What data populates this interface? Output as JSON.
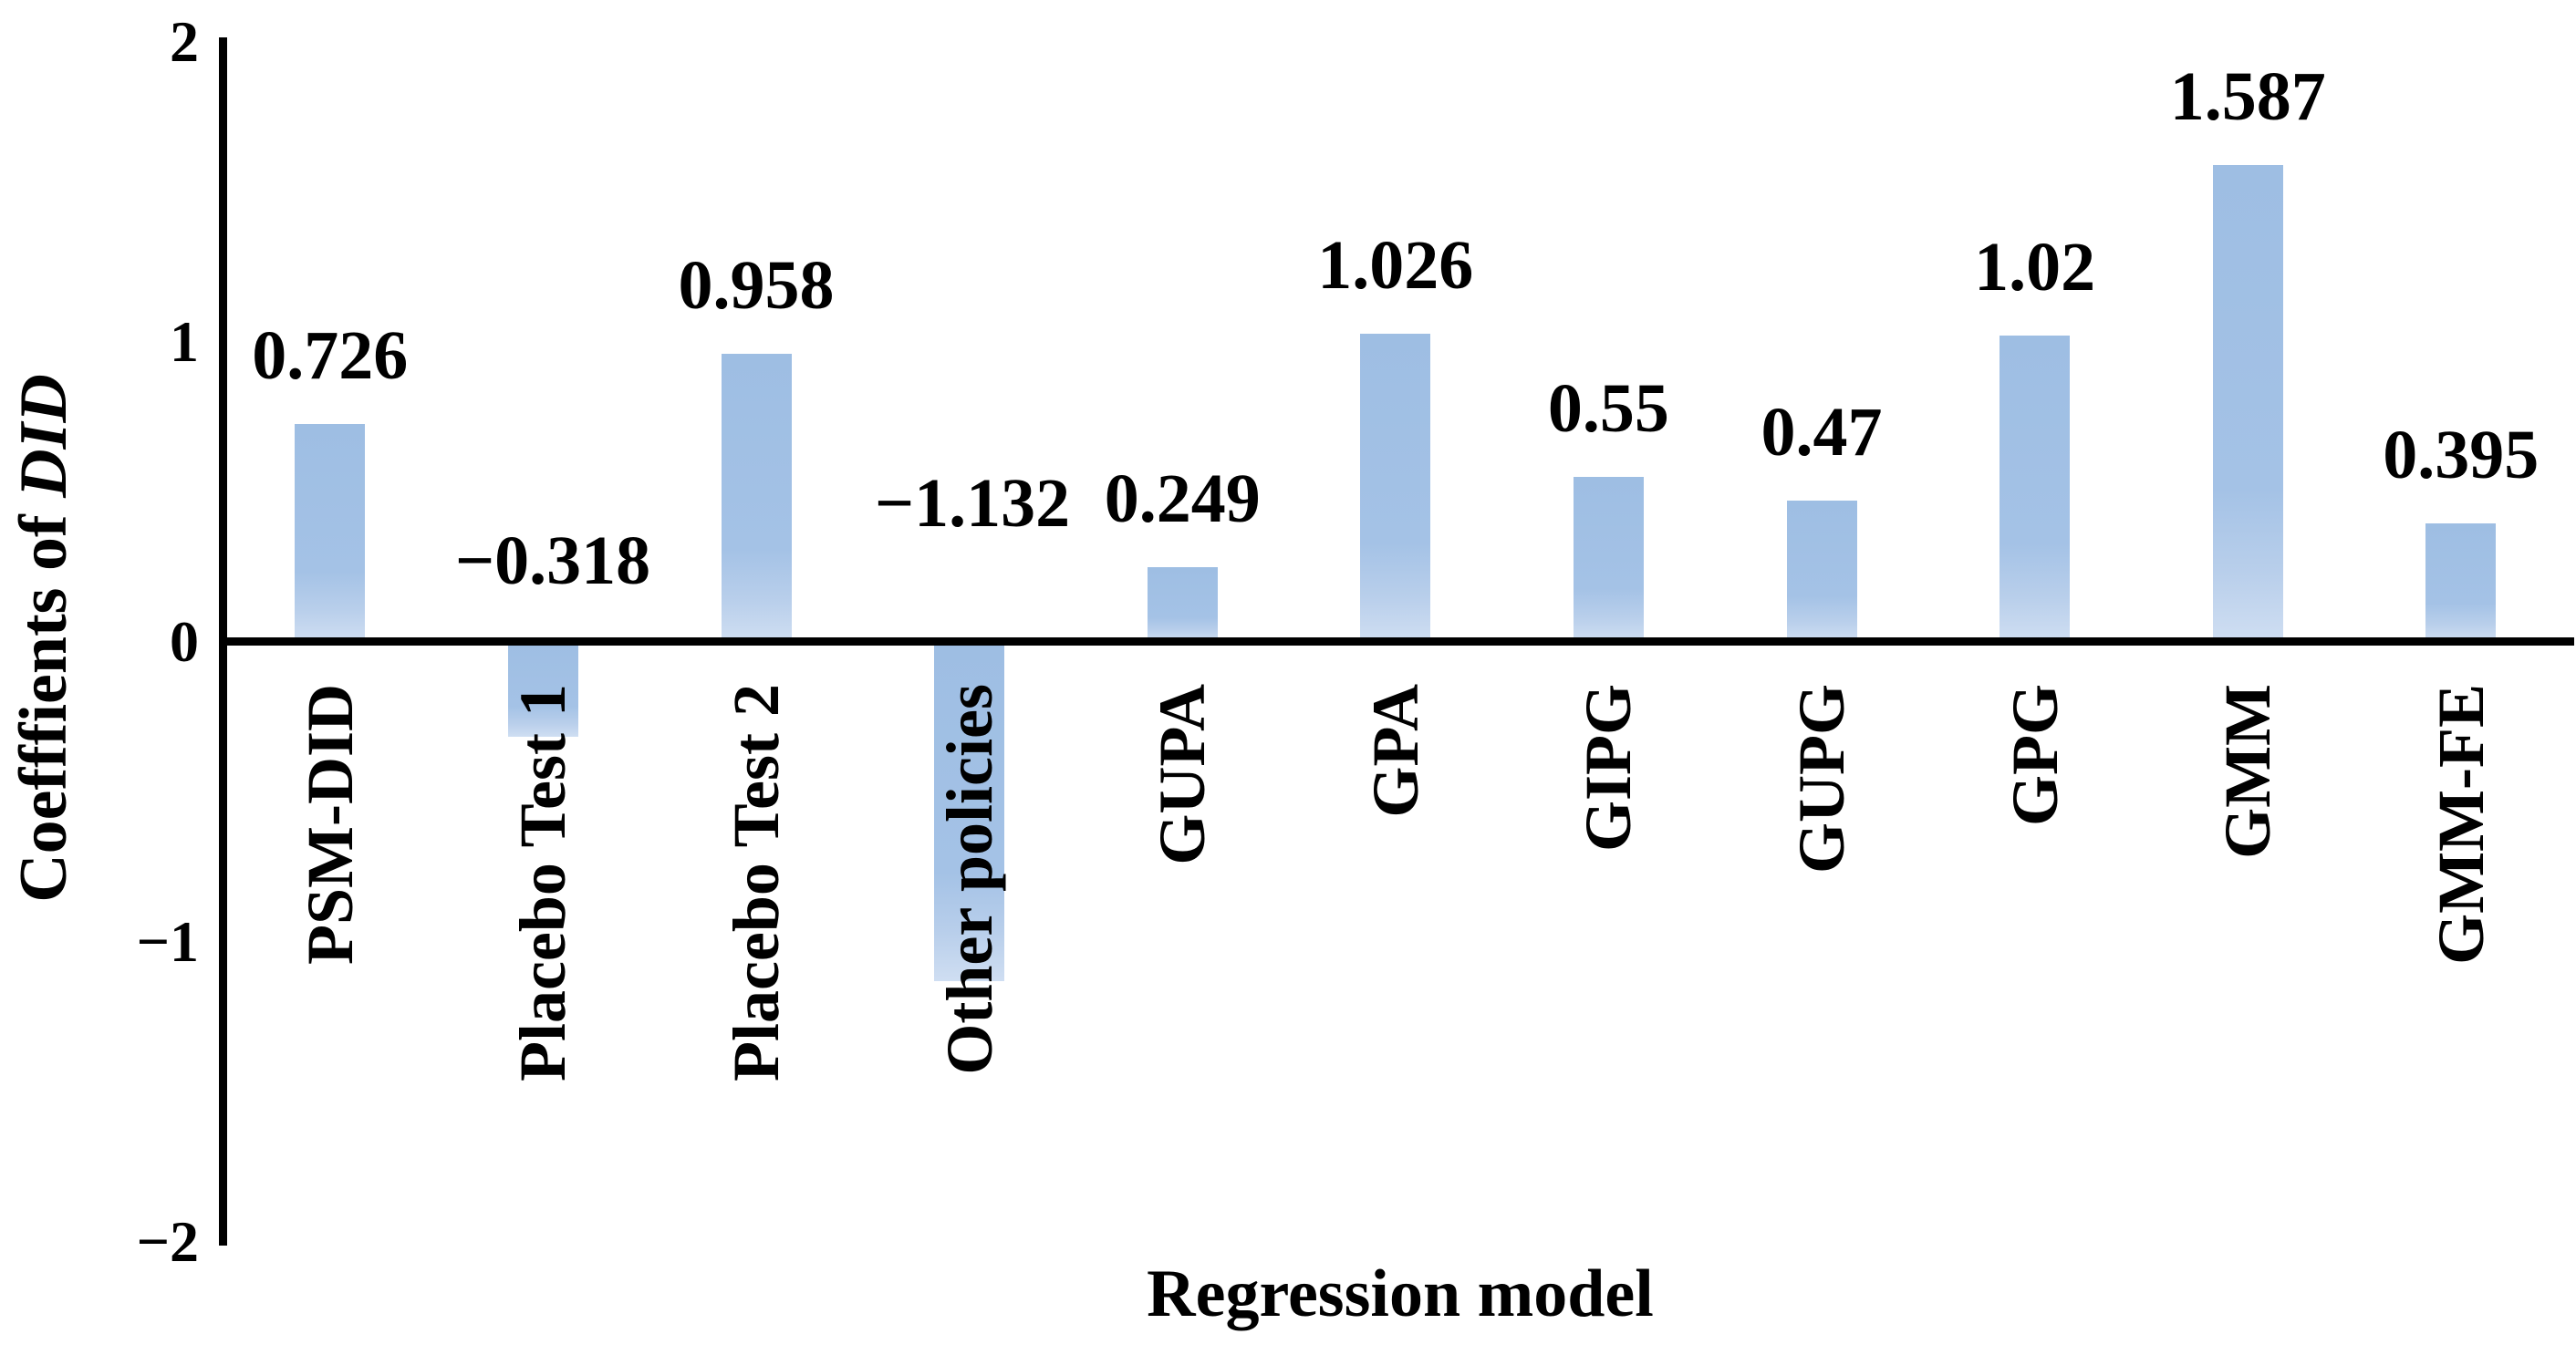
{
  "chart_data": {
    "type": "bar",
    "title": "",
    "categories": [
      "PSM-DID",
      "Placebo Test 1",
      "Placebo Test 2",
      "Other policies",
      "GUPA",
      "GPA",
      "GIPG",
      "GUPG",
      "GPG",
      "GMM",
      "GMM-FE"
    ],
    "values": [
      0.726,
      -0.318,
      0.958,
      -1.132,
      0.249,
      1.026,
      0.55,
      0.47,
      1.02,
      1.587,
      0.395
    ],
    "value_labels": [
      "0.726",
      "−0.318",
      "0.958",
      "−1.132",
      "0.249",
      "1.026",
      "0.55",
      "0.47",
      "1.02",
      "1.587",
      "0.395"
    ],
    "xlabel": "Regression model",
    "ylabel": "Coefffients of DID",
    "ylabel_main": "Coefffients of ",
    "ylabel_italic": "DID",
    "yticks": [
      "2",
      "1",
      "0",
      "−1",
      "−2"
    ],
    "ytick_values": [
      2,
      1,
      0,
      -1,
      -2
    ],
    "ylim": [
      -2,
      2
    ],
    "grid": false,
    "legend_position": "none",
    "bar_color": "#a4c2e6",
    "bar_fade_color": "#cfdef2",
    "axis_color": "#000000",
    "text_color": "#000000"
  }
}
